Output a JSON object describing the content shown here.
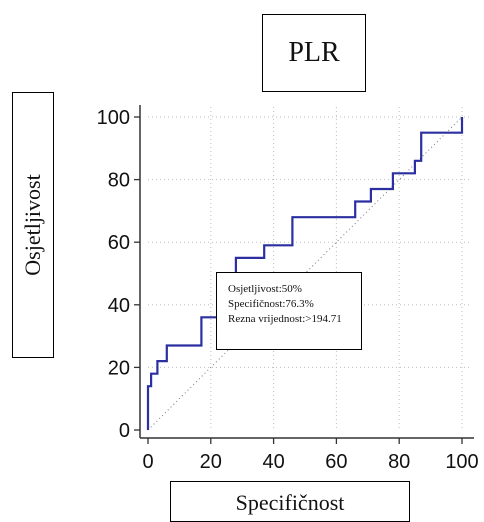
{
  "chart_data": {
    "type": "line",
    "title": "PLR",
    "xlabel": "Specifičnost",
    "ylabel": "Osjetljivost",
    "xlim": [
      0,
      100
    ],
    "ylim": [
      0,
      100
    ],
    "xticks": [
      0,
      20,
      40,
      60,
      80,
      100
    ],
    "yticks": [
      0,
      20,
      40,
      60,
      80,
      100
    ],
    "grid": true,
    "series": [
      {
        "color": "#2b2fa0",
        "x": [
          0,
          0,
          1,
          1,
          3,
          3,
          6,
          6,
          9,
          9,
          17,
          17,
          22,
          22,
          28,
          28,
          37,
          37,
          46,
          46,
          66,
          66,
          71,
          71,
          78,
          78,
          85,
          85,
          87,
          87,
          100,
          100
        ],
        "y": [
          0,
          14,
          14,
          18,
          18,
          22,
          22,
          27,
          27,
          27,
          27,
          36,
          36,
          45,
          45,
          55,
          55,
          59,
          59,
          68,
          68,
          73,
          73,
          77,
          77,
          82,
          82,
          86,
          86,
          95,
          95,
          100
        ]
      }
    ],
    "reference_line": {
      "x": [
        0,
        100
      ],
      "y": [
        0,
        100
      ],
      "style": "dotted"
    },
    "annotation": {
      "lines": [
        "Osjetljivost:50%",
        "Specifičnost:76.3%",
        "Rezna vrijednost:>194.71"
      ]
    }
  }
}
